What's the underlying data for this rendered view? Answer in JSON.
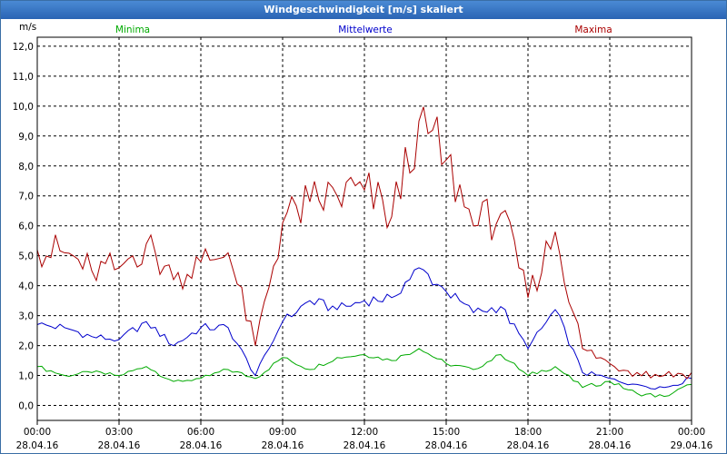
{
  "window": {
    "title": "Windgeschwindigkeit [m/s] skaliert"
  },
  "chart_data": {
    "type": "line",
    "title": "Windgeschwindigkeit [m/s] skaliert",
    "ylabel": "m/s",
    "xlabel": "",
    "ylim": [
      -0.5,
      12.3
    ],
    "xlim": [
      0,
      24
    ],
    "grid": true,
    "legend_position": "top",
    "y_ticks": [
      {
        "value": 0,
        "label": "0,0"
      },
      {
        "value": 1,
        "label": "1,0"
      },
      {
        "value": 2,
        "label": "2,0"
      },
      {
        "value": 3,
        "label": "3,0"
      },
      {
        "value": 4,
        "label": "4,0"
      },
      {
        "value": 5,
        "label": "5,0"
      },
      {
        "value": 6,
        "label": "6,0"
      },
      {
        "value": 7,
        "label": "7,0"
      },
      {
        "value": 8,
        "label": "8,0"
      },
      {
        "value": 9,
        "label": "9,0"
      },
      {
        "value": 10,
        "label": "10,0"
      },
      {
        "value": 11,
        "label": "11,0"
      },
      {
        "value": 12,
        "label": "12,0"
      }
    ],
    "x_ticks": [
      {
        "value": 0,
        "time": "00:00",
        "date": "28.04.16"
      },
      {
        "value": 3,
        "time": "03:00",
        "date": "28.04.16"
      },
      {
        "value": 6,
        "time": "06:00",
        "date": "28.04.16"
      },
      {
        "value": 9,
        "time": "09:00",
        "date": "28.04.16"
      },
      {
        "value": 12,
        "time": "12:00",
        "date": "28.04.16"
      },
      {
        "value": 15,
        "time": "15:00",
        "date": "28.04.16"
      },
      {
        "value": 18,
        "time": "18:00",
        "date": "28.04.16"
      },
      {
        "value": 21,
        "time": "21:00",
        "date": "28.04.16"
      },
      {
        "value": 24,
        "time": "00:00",
        "date": "29.04.16"
      }
    ],
    "series": [
      {
        "name": "Minima",
        "color": "#00aa00",
        "x": [
          0,
          1,
          2,
          3,
          4,
          5,
          6,
          7,
          8,
          9,
          10,
          11,
          12,
          13,
          14,
          15,
          16,
          17,
          18,
          19,
          20,
          21,
          22,
          23,
          24
        ],
        "y": [
          1.3,
          1.0,
          1.1,
          1.0,
          1.3,
          0.8,
          0.9,
          1.2,
          0.9,
          1.6,
          1.2,
          1.6,
          1.7,
          1.5,
          1.9,
          1.4,
          1.2,
          1.7,
          1.0,
          1.3,
          0.6,
          0.8,
          0.4,
          0.3,
          0.7
        ]
      },
      {
        "name": "Mittelwerte",
        "color": "#0000cc",
        "x": [
          0,
          1,
          2,
          3,
          4,
          5,
          6,
          7,
          8,
          9,
          10,
          11,
          12,
          13,
          14,
          15,
          16,
          17,
          18,
          19,
          20,
          21,
          22,
          23,
          24
        ],
        "y": [
          2.7,
          2.6,
          2.3,
          2.2,
          2.8,
          2.0,
          2.6,
          2.6,
          1.0,
          2.8,
          3.5,
          3.2,
          3.5,
          3.6,
          4.6,
          3.8,
          3.1,
          3.3,
          1.9,
          3.2,
          1.1,
          0.9,
          0.7,
          0.6,
          0.9
        ]
      },
      {
        "name": "Maxima",
        "color": "#aa0000",
        "x": [
          0,
          1,
          2,
          3,
          4,
          5,
          6,
          7,
          8,
          9,
          10,
          11,
          12,
          13,
          14,
          15,
          16,
          17,
          18,
          19,
          20,
          21,
          22,
          23,
          24
        ],
        "y": [
          5.2,
          5.1,
          4.5,
          4.6,
          5.4,
          4.2,
          4.8,
          5.1,
          2.0,
          6.1,
          6.8,
          7.0,
          7.2,
          6.3,
          9.5,
          8.2,
          6.0,
          6.4,
          3.6,
          5.8,
          1.9,
          1.4,
          1.1,
          1.0,
          1.1
        ]
      }
    ]
  }
}
